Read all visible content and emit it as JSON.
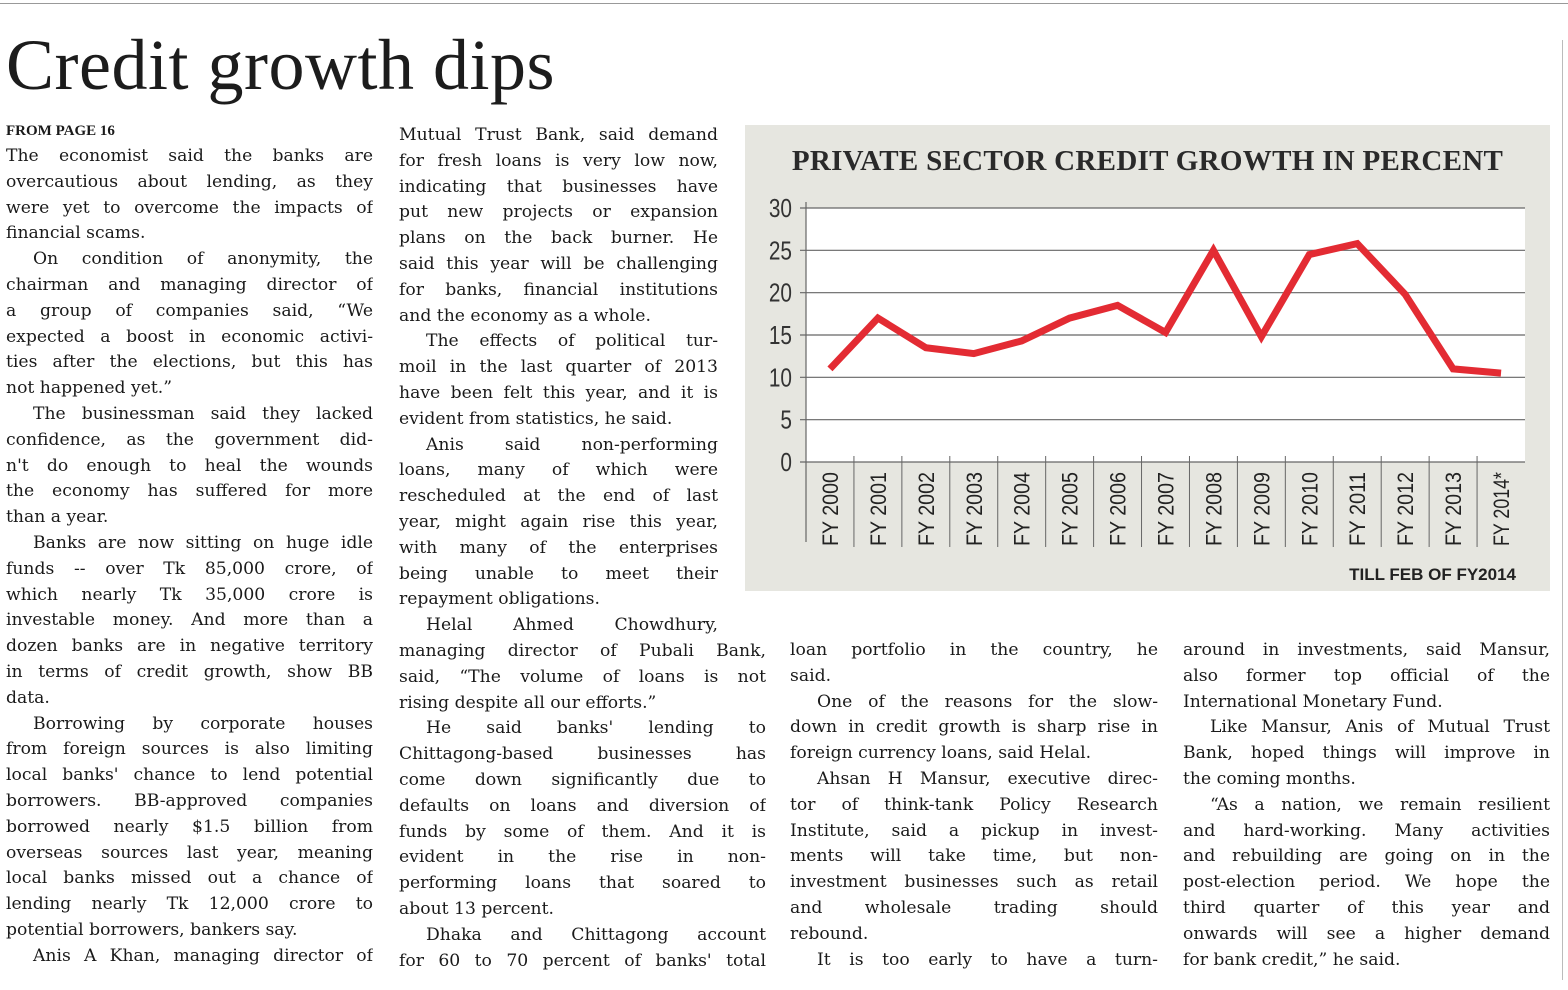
{
  "headline": "Credit growth dips",
  "from_page": "FROM PAGE 16",
  "columns": [
    {
      "continues_paragraph": true,
      "paragraphs": [
        [
          "The economist said the banks are",
          "overcautious about lending, as they",
          "were yet to overcome the impacts of",
          "financial scams."
        ],
        [
          "On condition of anonymity, the",
          "chairman and managing director of",
          "a group of companies said, “We",
          "expected a boost in economic activi-",
          "ties after the elections, but this has",
          "not happened yet.”"
        ],
        [
          "The businessman said they lacked",
          "confidence, as the government did-",
          "n't do enough to heal the wounds",
          "the economy has suffered for more",
          "than a year."
        ],
        [
          "Banks are now sitting on huge idle",
          "funds -- over Tk 85,000 crore, of",
          "which nearly Tk 35,000 crore is",
          "investable money. And more than a",
          "dozen banks are in negative territory",
          "in terms of credit growth, show BB",
          "data."
        ],
        [
          "Borrowing by corporate houses",
          "from foreign sources is also limiting",
          "local banks' chance to lend potential",
          "borrowers. BB-approved companies",
          "borrowed nearly $1.5 billion from",
          "overseas sources last year, meaning",
          "local banks missed out a chance of",
          "lending nearly Tk 12,000 crore to",
          "potential borrowers, bankers say."
        ],
        [
          "Anis A Khan, managing director of"
        ]
      ],
      "last_open": true
    },
    {
      "continues_paragraph": true,
      "paragraphs": [
        [
          "Mutual Trust Bank, said demand",
          "for fresh loans is very low now,",
          "indicating that businesses have",
          "put new projects or expansion",
          "plans on the back burner. He",
          "said this year will be challenging",
          "for banks, financial institutions",
          "and the economy as a whole."
        ],
        [
          "The effects of political tur-",
          "moil in the last quarter of 2013",
          "have been felt this year, and it is",
          "evident from statistics, he said."
        ],
        [
          "Anis said non-performing",
          "loans, many of which were",
          "rescheduled at the end of last",
          "year, might again rise this year,",
          "with many of the enterprises",
          "being unable to meet their",
          "repayment obligations."
        ],
        [
          "Helal Ahmed Chowdhury,",
          "managing director of Pubali Bank,",
          "said, “The volume of loans is not",
          "rising despite all our efforts.”"
        ],
        [
          "He said banks' lending to",
          "Chittagong-based businesses has",
          "come down significantly due to",
          "defaults on loans and diversion of",
          "funds by some of them. And it is",
          "evident in the rise in non-",
          "performing loans that soared to",
          "about 13 percent."
        ],
        [
          "Dhaka and Chittagong account",
          "for 60 to 70 percent of banks' total"
        ]
      ],
      "last_open": true
    },
    {
      "continues_paragraph": true,
      "paragraphs": [
        [
          "loan portfolio in the country, he",
          "said."
        ],
        [
          "One of the reasons for the slow-",
          "down in credit growth is sharp rise in",
          "foreign currency loans, said Helal."
        ],
        [
          "Ahsan H Mansur, executive direc-",
          "tor of think-tank Policy Research",
          "Institute, said a pickup in invest-",
          "ments will take time, but non-",
          "investment businesses such as retail",
          "and wholesale trading should",
          "rebound."
        ],
        [
          "It is too early to have a turn-"
        ]
      ],
      "last_open": true
    },
    {
      "continues_paragraph": true,
      "paragraphs": [
        [
          "around in investments, said Mansur,",
          "also former top official of the",
          "International Monetary Fund."
        ],
        [
          "Like Mansur, Anis of Mutual Trust",
          "Bank, hoped things will improve in",
          "the coming months."
        ],
        [
          "“As a nation, we remain resilient",
          "and hard-working. Many activities",
          "and rebuilding are going on in the",
          "post-election period. We hope the",
          "third quarter of this year and",
          "onwards will see a higher demand",
          "for bank credit,” he said."
        ]
      ],
      "last_open": false
    }
  ],
  "chart_data": {
    "type": "line",
    "title": "PRIVATE SECTOR CREDIT GROWTH IN PERCENT",
    "note": "TILL FEB OF FY2014",
    "categories": [
      "FY 2000",
      "FY 2001",
      "FY 2002",
      "FY 2003",
      "FY 2004",
      "FY 2005",
      "FY 2006",
      "FY 2007",
      "FY 2008",
      "FY 2009",
      "FY 2010",
      "FY 2011",
      "FY 2012",
      "FY 2013",
      "FY 2014*"
    ],
    "series": [
      {
        "name": "Private sector credit growth",
        "values": [
          11,
          17,
          13.5,
          12.8,
          14.3,
          17,
          18.5,
          15.3,
          25,
          14.8,
          24.5,
          25.8,
          19.8,
          11,
          10.5
        ],
        "color": "#e32b33"
      }
    ],
    "yticks": [
      0,
      5,
      10,
      15,
      20,
      25,
      30
    ],
    "ylim": [
      0,
      30
    ],
    "xlabel": "",
    "ylabel": "",
    "grid": true
  }
}
